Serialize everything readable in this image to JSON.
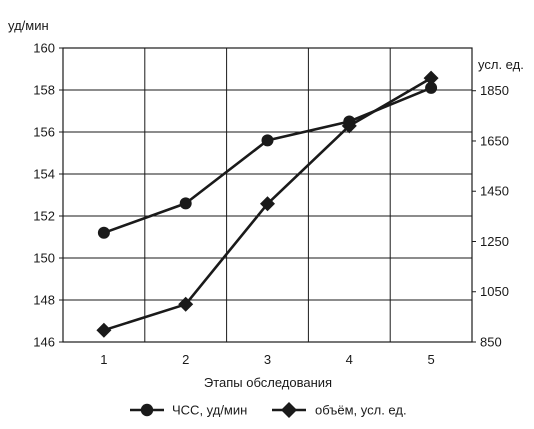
{
  "chart_data": {
    "type": "line",
    "title": "",
    "xlabel": "Этапы обследования",
    "ylabel": "уд/мин",
    "y2label": "усл. ед.",
    "categories": [
      "1",
      "2",
      "3",
      "4",
      "5"
    ],
    "ylim": [
      146,
      160
    ],
    "yticks": [
      "146",
      "148",
      "150",
      "152",
      "154",
      "156",
      "158",
      "160"
    ],
    "y2lim": [
      850,
      2020
    ],
    "y2ticks": [
      "850",
      "1050",
      "1250",
      "1450",
      "1650",
      "1850"
    ],
    "grid": true,
    "legend_position": "bottom",
    "series": [
      {
        "name": "ЧСС, уд/мин",
        "axis": "left",
        "marker": "circle",
        "color": "#1a1a1a",
        "values": [
          151.2,
          152.6,
          155.6,
          156.5,
          158.1
        ]
      },
      {
        "name": "объём, усл. ед.",
        "axis": "right",
        "marker": "diamond",
        "color": "#1a1a1a",
        "values": [
          897,
          1000,
          1400,
          1710,
          1900
        ]
      }
    ]
  }
}
